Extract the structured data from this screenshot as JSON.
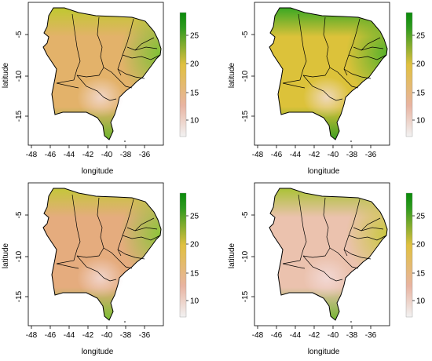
{
  "axes": {
    "xlabel": "longitude",
    "ylabel": "latitude",
    "x_ticks": [
      "-48",
      "-46",
      "-44",
      "-42",
      "-40",
      "-38",
      "-36"
    ],
    "y_ticks": [
      "-5",
      "-10",
      "-15"
    ]
  },
  "colorbar": {
    "ticks": [
      "10",
      "15",
      "20",
      "25"
    ],
    "colors": [
      "#f2f2f2",
      "#e8b4a2",
      "#e0c040",
      "#2e9a1e",
      "#0a8a0a"
    ]
  },
  "panels": [
    {
      "name": "top-left",
      "fill": "#e3b26a",
      "north": "#c0c830",
      "east": "#78c232",
      "south": "#6ab42a"
    },
    {
      "name": "top-right",
      "fill": "#dcc23a",
      "north": "#3aa823",
      "east": "#4fb02a",
      "south": "#3a9e22"
    },
    {
      "name": "bottom-left",
      "fill": "#e5ac7e",
      "north": "#c4c63a",
      "east": "#88c636",
      "south": "#78be30"
    },
    {
      "name": "bottom-right",
      "fill": "#ebc2ae",
      "north": "#aac236",
      "east": "#c8c83a",
      "south": "#72b430"
    }
  ],
  "chart_data": {
    "type": "heatmap",
    "xlabel": "longitude",
    "ylabel": "latitude",
    "xlim": [
      -49,
      -34.5
    ],
    "ylim": [
      -18.5,
      -1
    ],
    "colorbar_range": [
      6,
      29
    ],
    "colorbar_ticks": [
      10,
      15,
      20,
      25
    ]
  }
}
